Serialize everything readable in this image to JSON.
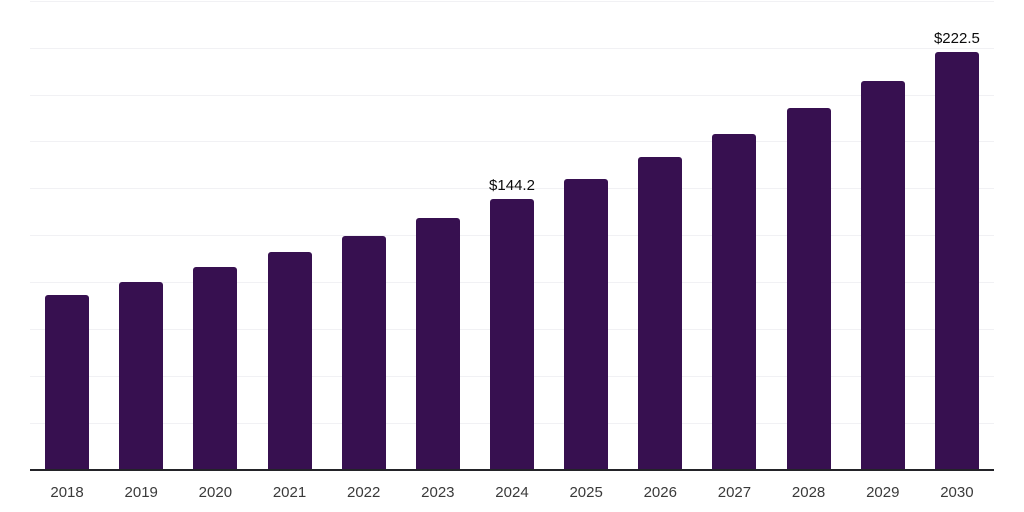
{
  "chart_data": {
    "type": "bar",
    "title": "",
    "xlabel": "",
    "ylabel": "",
    "categories": [
      "2018",
      "2019",
      "2020",
      "2021",
      "2022",
      "2023",
      "2024",
      "2025",
      "2026",
      "2027",
      "2028",
      "2029",
      "2030"
    ],
    "values": [
      93.4,
      100.4,
      107.9,
      116.0,
      124.7,
      134.1,
      144.2,
      155.0,
      166.6,
      179.1,
      192.6,
      207.0,
      222.5
    ],
    "bar_labels": [
      "",
      "",
      "",
      "",
      "",
      "",
      "$144.2",
      "",
      "",
      "",
      "",
      "",
      "$222.5"
    ],
    "ylim": [
      0,
      250
    ],
    "grid_interval": 25,
    "grid": true,
    "legend": false,
    "y_tick_labels_visible": false
  },
  "style": {
    "background_color": "#ffffff",
    "bar_color": "#371050",
    "grid_color": "#f1f1f4",
    "axis_line_color": "#232328",
    "x_tick_label_color": "#3a3a3a",
    "data_label_color": "#0b0b0b"
  }
}
